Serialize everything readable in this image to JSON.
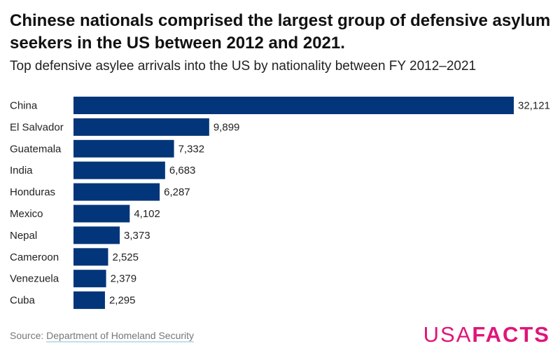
{
  "header": {
    "title": "Chinese nationals comprised the largest group of defensive asylum seekers in the US between 2012 and 2021.",
    "subtitle": "Top defensive asylee arrivals into the US by nationality between FY 2012–2021"
  },
  "chart_data": {
    "type": "bar",
    "orientation": "horizontal",
    "categories": [
      "China",
      "El Salvador",
      "Guatemala",
      "India",
      "Honduras",
      "Mexico",
      "Nepal",
      "Cameroon",
      "Venezuela",
      "Cuba"
    ],
    "values": [
      32121,
      9899,
      7332,
      6683,
      6287,
      4102,
      3373,
      2525,
      2379,
      2295
    ],
    "value_labels": [
      "32,121",
      "9,899",
      "7,332",
      "6,683",
      "6,287",
      "4,102",
      "3,373",
      "2,525",
      "2,379",
      "2,295"
    ],
    "bar_color": "#03357a",
    "grid": false
  },
  "footer": {
    "source_label": "Source:",
    "source_link": "Department of Homeland Security",
    "logo_part1": "USA",
    "logo_part2": "FACTS",
    "logo_color": "#e0157a"
  }
}
